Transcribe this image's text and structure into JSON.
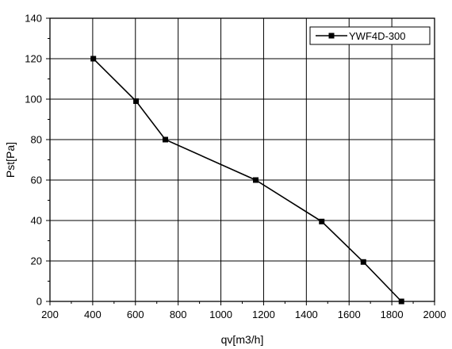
{
  "chart_data": {
    "type": "line",
    "title": "",
    "xlabel": "qv[m3/h]",
    "ylabel": "Pst[Pa]",
    "xlim": [
      200,
      2000
    ],
    "ylim": [
      0,
      140
    ],
    "xticks": [
      200,
      400,
      600,
      800,
      1000,
      1200,
      1400,
      1600,
      1800,
      2000
    ],
    "yticks": [
      0,
      20,
      40,
      60,
      80,
      100,
      120,
      140
    ],
    "grid": true,
    "legend_position": "top-right",
    "series": [
      {
        "name": "YWF4D-300",
        "color": "#000000",
        "marker": "square",
        "x": [
          403,
          603,
          740,
          1163,
          1472,
          1667,
          1845
        ],
        "y": [
          120,
          99,
          80,
          60,
          39.5,
          19.5,
          0
        ]
      }
    ]
  }
}
